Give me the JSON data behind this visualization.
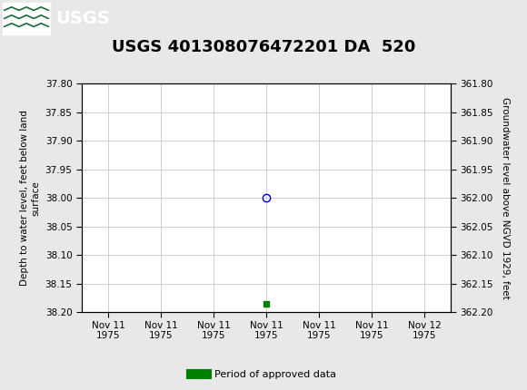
{
  "title": "USGS 401308076472201 DA  520",
  "title_fontsize": 13,
  "background_color": "#e8e8e8",
  "plot_bg_color": "#ffffff",
  "header_color": "#1a6b3c",
  "left_ylabel": "Depth to water level, feet below land\nsurface",
  "right_ylabel": "Groundwater level above NGVD 1929, feet",
  "ylim_left": [
    37.8,
    38.2
  ],
  "ylim_right": [
    362.2,
    361.8
  ],
  "left_yticks": [
    37.8,
    37.85,
    37.9,
    37.95,
    38.0,
    38.05,
    38.1,
    38.15,
    38.2
  ],
  "right_yticks": [
    362.2,
    362.15,
    362.1,
    362.05,
    362.0,
    361.95,
    361.9,
    361.85,
    361.8
  ],
  "data_point_x": 3.0,
  "data_point_y": 38.0,
  "data_point_color": "#0000cd",
  "data_point_marker": "o",
  "data_point_markersize": 6,
  "data_point_fillstyle": "none",
  "approved_point_x": 3.0,
  "approved_point_y": 38.185,
  "approved_point_color": "#008000",
  "approved_point_marker": "s",
  "approved_point_markersize": 4,
  "legend_label": "Period of approved data",
  "legend_color": "#008000",
  "xtick_labels": [
    "Nov 11\n1975",
    "Nov 11\n1975",
    "Nov 11\n1975",
    "Nov 11\n1975",
    "Nov 11\n1975",
    "Nov 11\n1975",
    "Nov 12\n1975"
  ],
  "xtick_positions": [
    0,
    1,
    2,
    3,
    4,
    5,
    6
  ],
  "grid_color": "#c8c8c8",
  "font_family": "Courier New",
  "usgs_header_bg": "#1a6b3c",
  "figsize": [
    5.8,
    4.3
  ],
  "dpi": 100
}
